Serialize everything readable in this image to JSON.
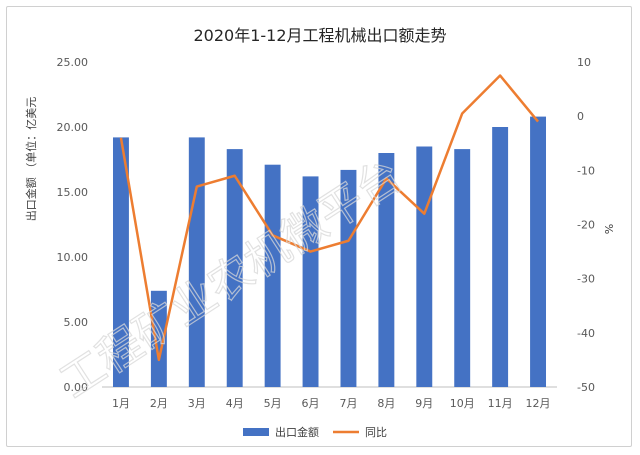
{
  "chart_data": {
    "type": "bar",
    "title": "2020年1-12月工程机械出口额走势",
    "categories": [
      "1月",
      "2月",
      "3月",
      "4月",
      "5月",
      "6月",
      "7月",
      "8月",
      "9月",
      "10月",
      "11月",
      "12月"
    ],
    "y_left": {
      "label": "出口金额 （单位：亿美元",
      "lim": [
        0,
        25
      ],
      "ticks": [
        "0.00",
        "5.00",
        "10.00",
        "15.00",
        "20.00",
        "25.00"
      ]
    },
    "y_right": {
      "label": "%",
      "lim": [
        -50,
        10
      ],
      "ticks": [
        "-50",
        "-40",
        "-30",
        "-20",
        "-10",
        "0",
        "10"
      ]
    },
    "series": [
      {
        "name": "出口金额",
        "type": "bar",
        "axis": "left",
        "color": "#4472C4",
        "values": [
          19.2,
          7.4,
          19.2,
          18.3,
          17.1,
          16.2,
          16.7,
          18.0,
          18.5,
          18.3,
          20.0,
          20.8
        ]
      },
      {
        "name": "同比",
        "type": "line",
        "axis": "right",
        "color": "#ED7D31",
        "values": [
          -4,
          -45,
          -13,
          -11,
          -22,
          -25,
          -23,
          -11.5,
          -18,
          0.5,
          7.5,
          -1
        ]
      }
    ],
    "grid": false,
    "legend": "bottom",
    "watermark": "工程矿业农机微平台"
  }
}
